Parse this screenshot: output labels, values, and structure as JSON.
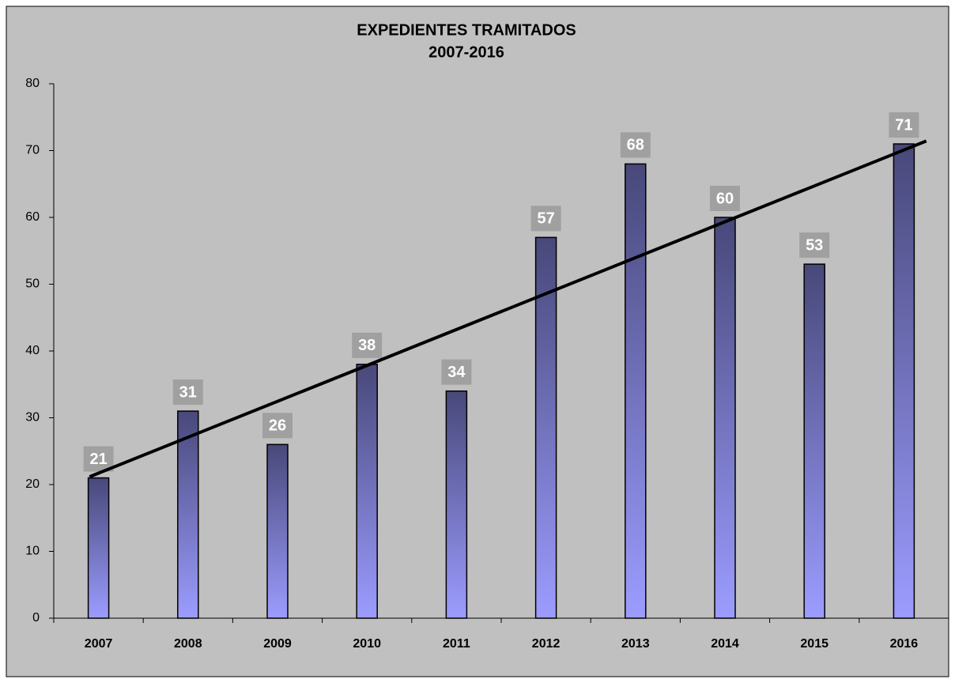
{
  "chart_data": {
    "type": "bar",
    "title": "EXPEDIENTES TRAMITADOS",
    "subtitle": "2007-2016",
    "categories": [
      "2007",
      "2008",
      "2009",
      "2010",
      "2011",
      "2012",
      "2013",
      "2014",
      "2015",
      "2016"
    ],
    "values": [
      21,
      31,
      26,
      38,
      34,
      57,
      68,
      60,
      53,
      71
    ],
    "color_top": "#48487a",
    "color_bottom": "#9c9cff",
    "ylim": [
      0,
      80
    ],
    "yticks": [
      0,
      10,
      20,
      30,
      40,
      50,
      60,
      70,
      80
    ],
    "grid": false,
    "trendline": "linear"
  }
}
